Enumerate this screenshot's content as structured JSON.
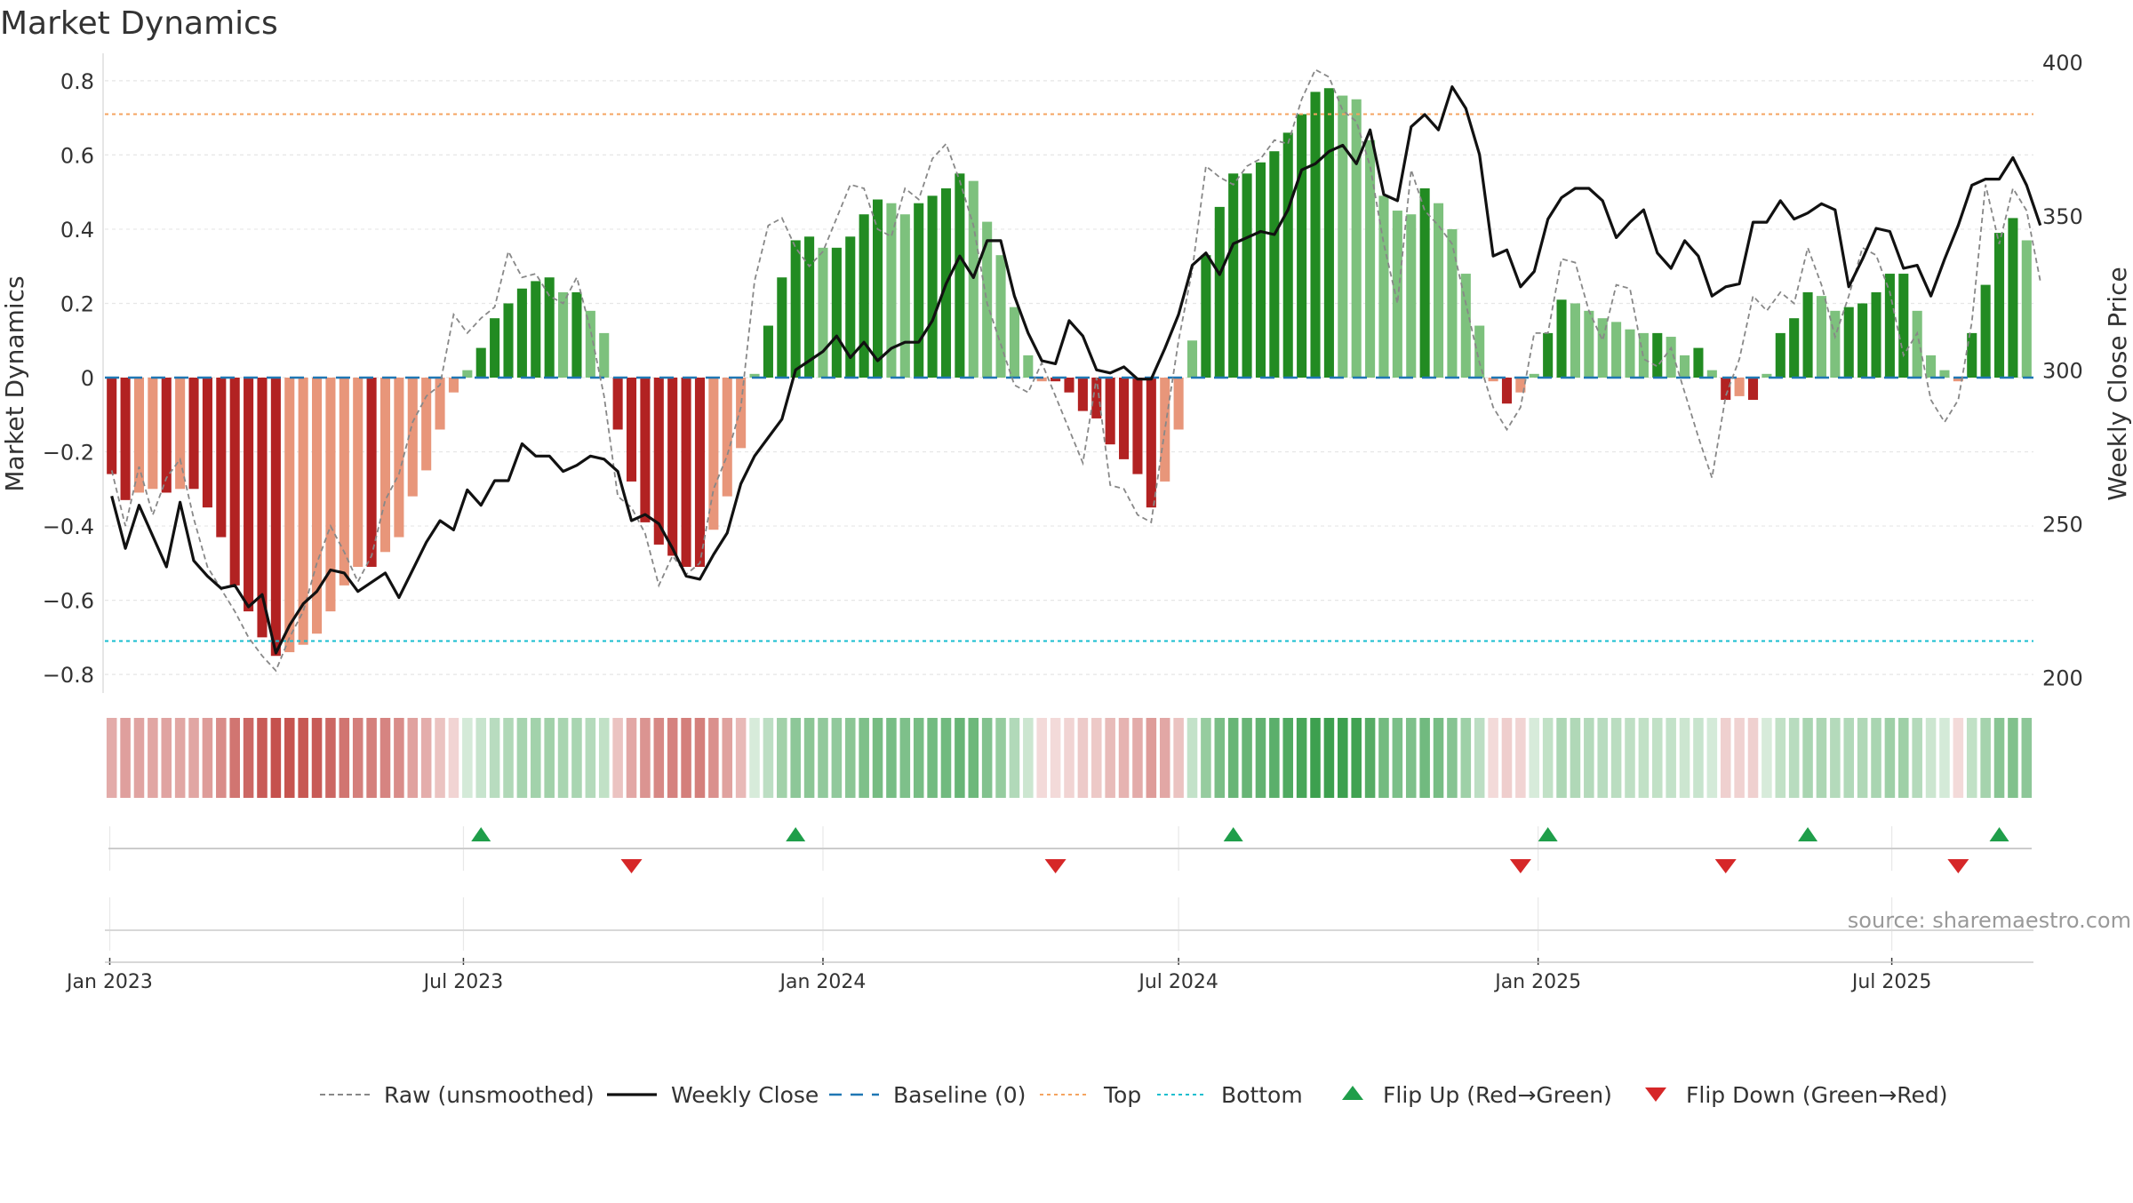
{
  "title": "Market Dynamics",
  "source_note": "source: sharemaestro.com",
  "colors": {
    "green_strong": "#228B22",
    "green_light": "#7DC17D",
    "red_strong": "#B22222",
    "red_light": "#E8967A",
    "close_line": "#111111",
    "raw_line": "#888888",
    "baseline": "#1f77b4",
    "top_line": "#f4a460",
    "bottom_line": "#17becf",
    "flip_up": "#1f9e4a",
    "flip_down": "#d62728"
  },
  "legend": [
    {
      "label": "Raw (unsmoothed)",
      "icon": "dashed-gray-line"
    },
    {
      "label": "Weekly Close",
      "icon": "solid-black-line"
    },
    {
      "label": "Baseline (0)",
      "icon": "dashed-blue-line"
    },
    {
      "label": "Top",
      "icon": "dotted-orange-line"
    },
    {
      "label": "Bottom",
      "icon": "dotted-cyan-line"
    },
    {
      "label": "Flip Up (Red→Green)",
      "icon": "green-up-triangle"
    },
    {
      "label": "Flip Down (Green→Red)",
      "icon": "red-down-triangle"
    }
  ],
  "chart_data": {
    "type": "bar",
    "title": "Market Dynamics",
    "ylabel": "Market Dynamics",
    "y2label": "Weekly Close Price",
    "ylim": [
      -0.85,
      0.85
    ],
    "y2lim": [
      195,
      400
    ],
    "yticks": [
      "0.8",
      "0.6",
      "0.4",
      "0.2",
      "0",
      "−0.2",
      "−0.4",
      "−0.6",
      "−0.8"
    ],
    "y2ticks": [
      "400",
      "350",
      "300",
      "250",
      "200"
    ],
    "xticks": [
      "Jan 2023",
      "Jul 2023",
      "Jan 2024",
      "Jul 2024",
      "Jan 2025",
      "Jul 2025"
    ],
    "top_level": 0.71,
    "bottom_level": -0.71,
    "baseline": 0,
    "grid": true,
    "legend_position": "bottom",
    "values": [
      -0.26,
      -0.33,
      -0.31,
      -0.3,
      -0.31,
      -0.3,
      -0.3,
      -0.35,
      -0.43,
      -0.56,
      -0.63,
      -0.7,
      -0.75,
      -0.74,
      -0.72,
      -0.69,
      -0.63,
      -0.56,
      -0.51,
      -0.51,
      -0.47,
      -0.43,
      -0.32,
      -0.25,
      -0.14,
      -0.04,
      0.02,
      0.08,
      0.16,
      0.2,
      0.24,
      0.26,
      0.27,
      0.23,
      0.23,
      0.18,
      0.12,
      -0.14,
      -0.28,
      -0.39,
      -0.45,
      -0.48,
      -0.51,
      -0.51,
      -0.41,
      -0.32,
      -0.19,
      0.01,
      0.14,
      0.27,
      0.37,
      0.38,
      0.35,
      0.35,
      0.38,
      0.44,
      0.48,
      0.47,
      0.44,
      0.47,
      0.49,
      0.51,
      0.55,
      0.53,
      0.42,
      0.33,
      0.19,
      0.06,
      -0.01,
      -0.01,
      -0.04,
      -0.09,
      -0.11,
      -0.18,
      -0.22,
      -0.26,
      -0.35,
      -0.28,
      -0.14,
      0.1,
      0.33,
      0.46,
      0.55,
      0.55,
      0.58,
      0.61,
      0.66,
      0.71,
      0.77,
      0.78,
      0.76,
      0.75,
      0.64,
      0.49,
      0.45,
      0.44,
      0.51,
      0.47,
      0.4,
      0.28,
      0.14,
      -0.01,
      -0.07,
      -0.04,
      0.01,
      0.12,
      0.21,
      0.2,
      0.18,
      0.16,
      0.15,
      0.13,
      0.12,
      0.12,
      0.11,
      0.06,
      0.08,
      0.02,
      -0.06,
      -0.05,
      -0.06,
      0.01,
      0.12,
      0.16,
      0.23,
      0.22,
      0.18,
      0.19,
      0.2,
      0.23,
      0.28,
      0.28,
      0.18,
      0.06,
      0.02,
      -0.01,
      0.12,
      0.25,
      0.39,
      0.43,
      0.37
    ],
    "weekly_close": [
      259,
      242,
      256,
      246,
      236,
      257,
      238,
      233,
      229,
      230,
      223,
      227,
      208,
      217,
      224,
      228,
      235,
      234,
      228,
      231,
      234,
      226,
      235,
      244,
      251,
      248,
      261,
      256,
      264,
      264,
      276,
      272,
      272,
      267,
      269,
      272,
      271,
      267,
      251,
      253,
      250,
      242,
      233,
      232,
      240,
      247,
      263,
      272,
      278,
      284,
      300,
      303,
      306,
      311,
      304,
      309,
      303,
      307,
      309,
      309,
      316,
      328,
      337,
      330,
      342,
      342,
      324,
      312,
      303,
      302,
      316,
      311,
      300,
      299,
      301,
      297,
      297,
      307,
      318,
      334,
      338,
      331,
      341,
      343,
      345,
      344,
      352,
      365,
      367,
      371,
      373,
      367,
      378,
      357,
      355,
      379,
      383,
      378,
      392,
      385,
      370,
      337,
      339,
      327,
      332,
      349,
      356,
      359,
      359,
      355,
      343,
      348,
      352,
      338,
      333,
      342,
      337,
      324,
      327,
      328,
      348,
      348,
      355,
      349,
      351,
      354,
      352,
      327,
      336,
      346,
      345,
      333,
      334,
      324,
      336,
      347,
      360,
      362,
      362,
      369,
      360,
      347
    ],
    "raw": [
      -0.25,
      -0.4,
      -0.24,
      -0.37,
      -0.27,
      -0.22,
      -0.38,
      -0.51,
      -0.57,
      -0.63,
      -0.7,
      -0.75,
      -0.79,
      -0.7,
      -0.63,
      -0.5,
      -0.4,
      -0.47,
      -0.55,
      -0.48,
      -0.33,
      -0.26,
      -0.12,
      -0.05,
      -0.02,
      0.17,
      0.12,
      0.16,
      0.19,
      0.34,
      0.27,
      0.28,
      0.22,
      0.2,
      0.27,
      0.13,
      -0.05,
      -0.32,
      -0.35,
      -0.42,
      -0.56,
      -0.48,
      -0.53,
      -0.5,
      -0.3,
      -0.21,
      -0.08,
      0.26,
      0.41,
      0.43,
      0.35,
      0.3,
      0.34,
      0.43,
      0.52,
      0.51,
      0.4,
      0.38,
      0.51,
      0.48,
      0.59,
      0.63,
      0.53,
      0.41,
      0.2,
      0.09,
      -0.02,
      -0.04,
      0.04,
      -0.05,
      -0.14,
      -0.23,
      0.0,
      -0.29,
      -0.3,
      -0.37,
      -0.39,
      -0.14,
      0.1,
      0.29,
      0.57,
      0.54,
      0.52,
      0.57,
      0.59,
      0.64,
      0.63,
      0.75,
      0.83,
      0.81,
      0.72,
      0.69,
      0.57,
      0.36,
      0.2,
      0.56,
      0.45,
      0.41,
      0.36,
      0.2,
      0.04,
      -0.08,
      -0.14,
      -0.08,
      0.12,
      0.12,
      0.32,
      0.31,
      0.18,
      0.1,
      0.25,
      0.24,
      0.05,
      0.03,
      0.08,
      -0.04,
      -0.16,
      -0.27,
      -0.05,
      0.05,
      0.22,
      0.18,
      0.23,
      0.2,
      0.35,
      0.25,
      0.11,
      0.22,
      0.35,
      0.33,
      0.23,
      0.06,
      0.12,
      -0.06,
      -0.12,
      -0.06,
      0.15,
      0.52,
      0.36,
      0.51,
      0.45,
      0.26
    ],
    "x_week_start": "2023-01-02",
    "flip_up_weeks": [
      27,
      50,
      82,
      105,
      124,
      138
    ],
    "flip_down_weeks": [
      38,
      69,
      103,
      118,
      135
    ]
  }
}
